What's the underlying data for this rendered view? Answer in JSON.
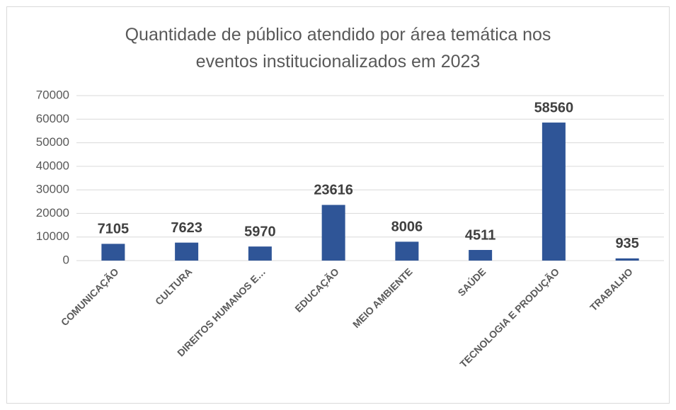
{
  "chart_data": {
    "type": "bar",
    "title": "Quantidade de público atendido por área temática nos eventos institucionalizados em 2023",
    "categories": [
      "COMUNICAÇÃO",
      "CULTURA",
      "DIREITOS HUMANOS E…",
      "EDUCAÇÃO",
      "MEIO AMBIENTE",
      "SAÚDE",
      "TECNOLOGIA E PRODUÇÃO",
      "TRABALHO"
    ],
    "values": [
      7105,
      7623,
      5970,
      23616,
      8006,
      4511,
      58560,
      935
    ],
    "color": "#2f5597",
    "ylim": [
      0,
      70000
    ],
    "yticks": [
      0,
      10000,
      20000,
      30000,
      40000,
      50000,
      60000,
      70000
    ],
    "grid": true
  }
}
